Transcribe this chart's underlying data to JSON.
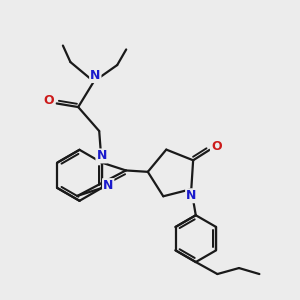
{
  "bg_color": "#ececec",
  "bond_color": "#1a1a1a",
  "N_color": "#1a1acc",
  "O_color": "#cc1a1a",
  "line_width": 1.6,
  "font_size_atom": 8.5,
  "xlim": [
    0,
    10
  ],
  "ylim": [
    0,
    10
  ]
}
